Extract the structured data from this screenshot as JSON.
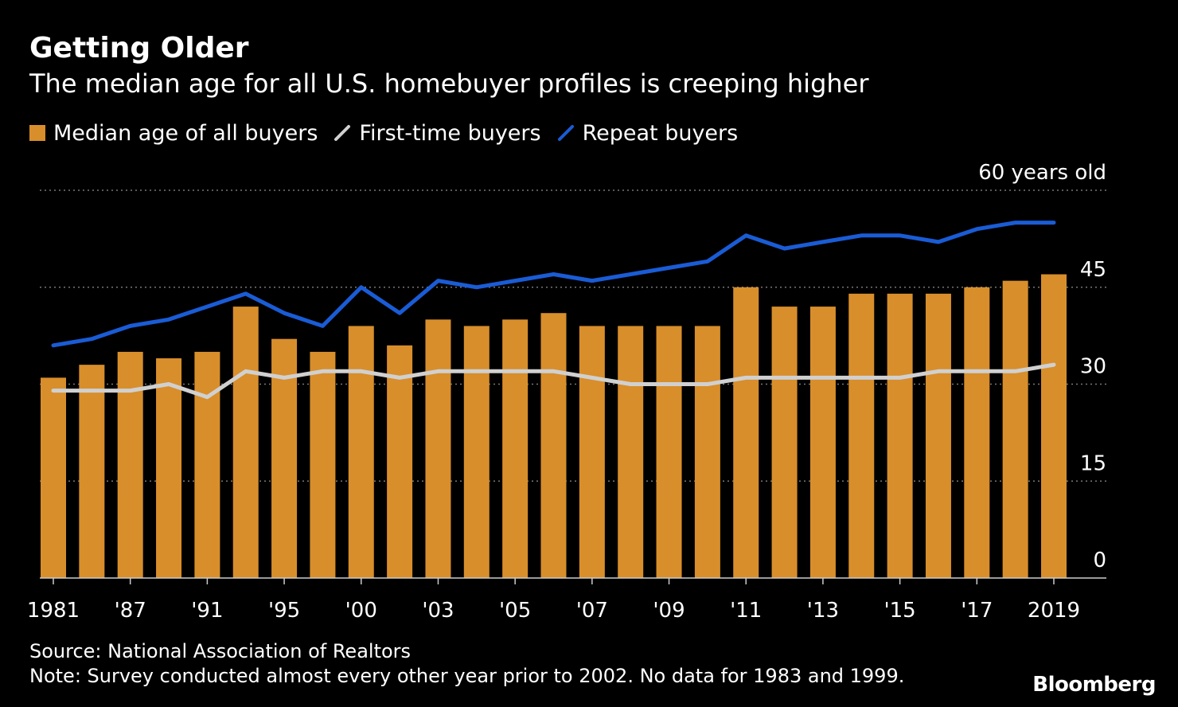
{
  "header": {
    "title": "Getting Older",
    "subtitle": "The median age for all U.S. homebuyer profiles is creeping higher"
  },
  "legend": [
    {
      "label": "Median age of all buyers",
      "color": "#d88e2b",
      "icon": "bar-swatch-icon"
    },
    {
      "label": "First-time buyers",
      "color": "#d0d0d0",
      "icon": "line-swatch-icon"
    },
    {
      "label": "Repeat buyers",
      "color": "#1a5cd6",
      "icon": "line-swatch-icon"
    }
  ],
  "colors": {
    "background": "#000000",
    "bars": "#d88e2b",
    "first_time": "#d0d0d0",
    "repeat": "#1a5cd6",
    "gridline": "#777777",
    "axis": "#cccccc"
  },
  "chart_data": {
    "type": "bar",
    "title": "Getting Older",
    "subtitle": "The median age for all U.S. homebuyer profiles is creeping higher",
    "x": [
      1981,
      1985,
      1987,
      1989,
      1991,
      1993,
      1995,
      1997,
      2000,
      2001,
      2003,
      2004,
      2005,
      2006,
      2007,
      2008,
      2009,
      2010,
      2011,
      2012,
      2013,
      2014,
      2015,
      2016,
      2017,
      2018,
      2019
    ],
    "x_tick_labels": [
      {
        "x": 1981,
        "label": "1981"
      },
      {
        "x": 1987,
        "label": "'87"
      },
      {
        "x": 1991,
        "label": "'91"
      },
      {
        "x": 1995,
        "label": "'95"
      },
      {
        "x": 2000,
        "label": "'00"
      },
      {
        "x": 2003,
        "label": "'03"
      },
      {
        "x": 2005,
        "label": "'05"
      },
      {
        "x": 2007,
        "label": "'07"
      },
      {
        "x": 2009,
        "label": "'09"
      },
      {
        "x": 2011,
        "label": "'11"
      },
      {
        "x": 2013,
        "label": "'13"
      },
      {
        "x": 2015,
        "label": "'15"
      },
      {
        "x": 2017,
        "label": "'17"
      },
      {
        "x": 2019,
        "label": "2019"
      }
    ],
    "series": [
      {
        "name": "Median age of all buyers",
        "kind": "bar",
        "values": [
          31,
          33,
          35,
          34,
          35,
          42,
          37,
          35,
          39,
          36,
          40,
          39,
          40,
          41,
          39,
          39,
          39,
          39,
          45,
          42,
          42,
          44,
          44,
          44,
          45,
          46,
          47
        ]
      },
      {
        "name": "First-time buyers",
        "kind": "line",
        "values": [
          29,
          29,
          29,
          30,
          28,
          32,
          31,
          32,
          32,
          31,
          32,
          32,
          32,
          32,
          31,
          30,
          30,
          30,
          31,
          31,
          31,
          31,
          31,
          32,
          32,
          32,
          33
        ]
      },
      {
        "name": "Repeat buyers",
        "kind": "line",
        "values": [
          36,
          37,
          39,
          40,
          42,
          44,
          41,
          39,
          45,
          41,
          46,
          45,
          46,
          47,
          46,
          47,
          48,
          49,
          53,
          51,
          52,
          53,
          53,
          52,
          54,
          55,
          55
        ]
      }
    ],
    "y_ticks": [
      {
        "value": 60,
        "label": "60 years old"
      },
      {
        "value": 45,
        "label": "45"
      },
      {
        "value": 30,
        "label": "30"
      },
      {
        "value": 15,
        "label": "15"
      },
      {
        "value": 0,
        "label": "0"
      }
    ],
    "ylim": [
      0,
      60
    ],
    "grid": true,
    "grid_style": "dotted",
    "y_axis_side": "right",
    "legend_position": "top-left"
  },
  "footer": {
    "source": "Source: National Association of Realtors",
    "note": "Note: Survey conducted almost every other year prior to 2002. No data for 1983 and 1999.",
    "brand": "Bloomberg"
  }
}
